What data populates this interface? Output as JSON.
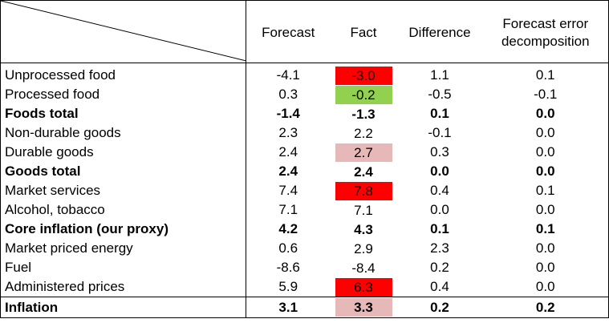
{
  "header": {
    "forecast": "Forecast",
    "fact": "Fact",
    "difference": "Difference",
    "decomposition_line1": "Forecast error",
    "decomposition_line2": "decomposition"
  },
  "highlight_colors": {
    "red": "#ff0000",
    "green": "#92d050",
    "pink": "#e6b8b7"
  },
  "rows": [
    {
      "label": "Unprocessed food",
      "forecast": "-4.1",
      "fact": "-3.0",
      "difference": "1.1",
      "decomposition": "0.1",
      "bold": false,
      "highlight": "red"
    },
    {
      "label": "Processed food",
      "forecast": "0.3",
      "fact": "-0.2",
      "difference": "-0.5",
      "decomposition": "-0.1",
      "bold": false,
      "highlight": "green"
    },
    {
      "label": "Foods total",
      "forecast": "-1.4",
      "fact": "-1.3",
      "difference": "0.1",
      "decomposition": "0.0",
      "bold": true,
      "highlight": ""
    },
    {
      "label": "Non-durable goods",
      "forecast": "2.3",
      "fact": "2.2",
      "difference": "-0.1",
      "decomposition": "0.0",
      "bold": false,
      "highlight": ""
    },
    {
      "label": "Durable goods",
      "forecast": "2.4",
      "fact": "2.7",
      "difference": "0.3",
      "decomposition": "0.0",
      "bold": false,
      "highlight": "pink"
    },
    {
      "label": "Goods total",
      "forecast": "2.4",
      "fact": "2.4",
      "difference": "0.0",
      "decomposition": "0.0",
      "bold": true,
      "highlight": ""
    },
    {
      "label": "Market services",
      "forecast": "7.4",
      "fact": "7.8",
      "difference": "0.4",
      "decomposition": "0.1",
      "bold": false,
      "highlight": "red"
    },
    {
      "label": "Alcohol, tobacco",
      "forecast": "7.1",
      "fact": "7.1",
      "difference": "0.0",
      "decomposition": "0.0",
      "bold": false,
      "highlight": ""
    },
    {
      "label": "Core inflation (our proxy)",
      "forecast": "4.2",
      "fact": "4.3",
      "difference": "0.1",
      "decomposition": "0.1",
      "bold": true,
      "highlight": ""
    },
    {
      "label": "Market priced energy",
      "forecast": "0.6",
      "fact": "2.9",
      "difference": "2.3",
      "decomposition": "0.0",
      "bold": false,
      "highlight": ""
    },
    {
      "label": "Fuel",
      "forecast": "-8.6",
      "fact": "-8.4",
      "difference": "0.2",
      "decomposition": "0.0",
      "bold": false,
      "highlight": ""
    },
    {
      "label": "Administered prices",
      "forecast": "5.9",
      "fact": "6.3",
      "difference": "0.4",
      "decomposition": "0.0",
      "bold": false,
      "highlight": "red"
    },
    {
      "label": "Inflation",
      "forecast": "3.1",
      "fact": "3.3",
      "difference": "0.2",
      "decomposition": "0.2",
      "bold": true,
      "highlight": "pink"
    }
  ]
}
